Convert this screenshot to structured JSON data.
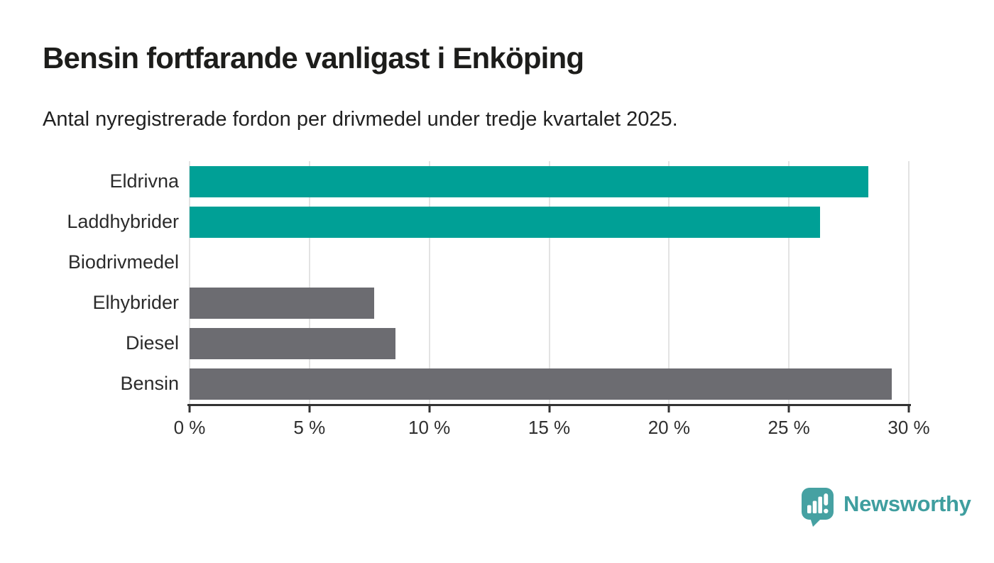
{
  "chart_data": {
    "type": "bar",
    "orientation": "horizontal",
    "title": "Bensin fortfarande vanligast i Enköping",
    "subtitle": "Antal nyregistrerade fordon per drivmedel under tredje kvartalet 2025.",
    "categories": [
      "Eldrivna",
      "Laddhybrider",
      "Biodrivmedel",
      "Elhybrider",
      "Diesel",
      "Bensin"
    ],
    "values": [
      28.3,
      26.3,
      0,
      7.7,
      8.6,
      29.3
    ],
    "unit": "%",
    "xlim": [
      0,
      30
    ],
    "x_ticks": [
      0,
      5,
      10,
      15,
      20,
      25,
      30
    ],
    "x_tick_labels": [
      "0 %",
      "5 %",
      "10 %",
      "15 %",
      "20 %",
      "25 %",
      "30 %"
    ],
    "bar_colors": [
      "#00a096",
      "#00a096",
      "#6c6c71",
      "#6c6c71",
      "#6c6c71",
      "#6c6c71"
    ],
    "colors": {
      "highlight": "#00a096",
      "default": "#6c6c71",
      "gridline": "#e3e3e3",
      "axis": "#333333"
    },
    "grid": "vertical",
    "legend": "none"
  },
  "branding": {
    "logo_text": "Newsworthy",
    "logo_icon": "speech-bubble-bar-chart-icon",
    "logo_icon_color": "#46a1a2",
    "logo_text_color": "#3f9e9f"
  }
}
